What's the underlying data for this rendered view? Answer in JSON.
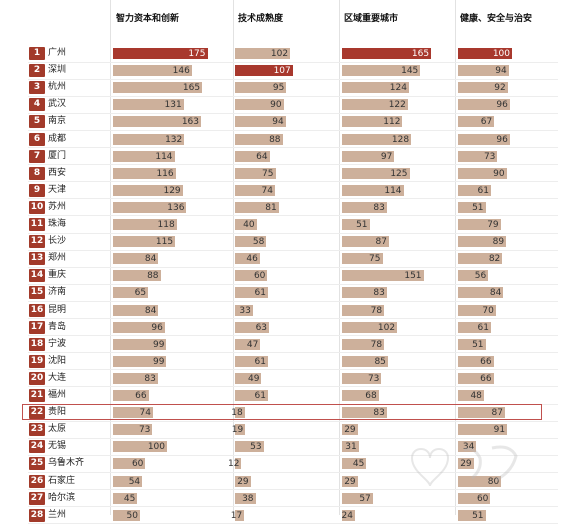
{
  "chart_data": {
    "type": "table",
    "columns": [
      "智力资本和创新",
      "技术成熟度",
      "区域重要城市",
      "健康、安全与治安"
    ],
    "rows": [
      {
        "rank": "1",
        "city": "广州",
        "values": [
          175,
          102,
          165,
          100
        ]
      },
      {
        "rank": "2",
        "city": "深圳",
        "values": [
          146,
          107,
          145,
          94
        ]
      },
      {
        "rank": "3",
        "city": "杭州",
        "values": [
          165,
          95,
          124,
          92
        ]
      },
      {
        "rank": "4",
        "city": "武汉",
        "values": [
          131,
          90,
          122,
          96
        ]
      },
      {
        "rank": "5",
        "city": "南京",
        "values": [
          163,
          94,
          112,
          67
        ]
      },
      {
        "rank": "6",
        "city": "成都",
        "values": [
          132,
          88,
          128,
          96
        ]
      },
      {
        "rank": "7",
        "city": "厦门",
        "values": [
          114,
          64,
          97,
          73
        ]
      },
      {
        "rank": "8",
        "city": "西安",
        "values": [
          116,
          75,
          125,
          90
        ]
      },
      {
        "rank": "9",
        "city": "天津",
        "values": [
          129,
          74,
          114,
          61
        ]
      },
      {
        "rank": "10",
        "city": "苏州",
        "values": [
          136,
          81,
          83,
          51
        ]
      },
      {
        "rank": "11",
        "city": "珠海",
        "values": [
          118,
          40,
          51,
          79
        ]
      },
      {
        "rank": "12",
        "city": "长沙",
        "values": [
          115,
          58,
          87,
          89
        ]
      },
      {
        "rank": "13",
        "city": "郑州",
        "values": [
          84,
          46,
          75,
          82
        ]
      },
      {
        "rank": "14",
        "city": "重庆",
        "values": [
          88,
          60,
          151,
          56
        ]
      },
      {
        "rank": "15",
        "city": "济南",
        "values": [
          65,
          61,
          83,
          84
        ]
      },
      {
        "rank": "16",
        "city": "昆明",
        "values": [
          84,
          33,
          78,
          70
        ]
      },
      {
        "rank": "17",
        "city": "青岛",
        "values": [
          96,
          63,
          102,
          61
        ]
      },
      {
        "rank": "18",
        "city": "宁波",
        "values": [
          99,
          47,
          78,
          51
        ]
      },
      {
        "rank": "19",
        "city": "沈阳",
        "values": [
          99,
          61,
          85,
          66
        ]
      },
      {
        "rank": "20",
        "city": "大连",
        "values": [
          83,
          49,
          73,
          66
        ]
      },
      {
        "rank": "21",
        "city": "福州",
        "values": [
          66,
          61,
          68,
          48
        ]
      },
      {
        "rank": "22",
        "city": "贵阳",
        "values": [
          74,
          18,
          83,
          87
        ]
      },
      {
        "rank": "23",
        "city": "太原",
        "values": [
          73,
          19,
          29,
          91
        ]
      },
      {
        "rank": "24",
        "city": "无锡",
        "values": [
          100,
          53,
          31,
          34
        ]
      },
      {
        "rank": "25",
        "city": "乌鲁木齐",
        "values": [
          60,
          12,
          45,
          29
        ]
      },
      {
        "rank": "26",
        "city": "石家庄",
        "values": [
          54,
          29,
          29,
          80
        ]
      },
      {
        "rank": "27",
        "city": "哈尔滨",
        "values": [
          45,
          38,
          57,
          60
        ]
      },
      {
        "rank": "28",
        "city": "兰州",
        "values": [
          50,
          17,
          24,
          51
        ]
      }
    ],
    "highlight_row": "22",
    "colors": {
      "rank_badge": "#a23a2a",
      "bar": "#cdb09b",
      "bar_top": "#a8382d",
      "highlight": "#c0504d"
    }
  }
}
